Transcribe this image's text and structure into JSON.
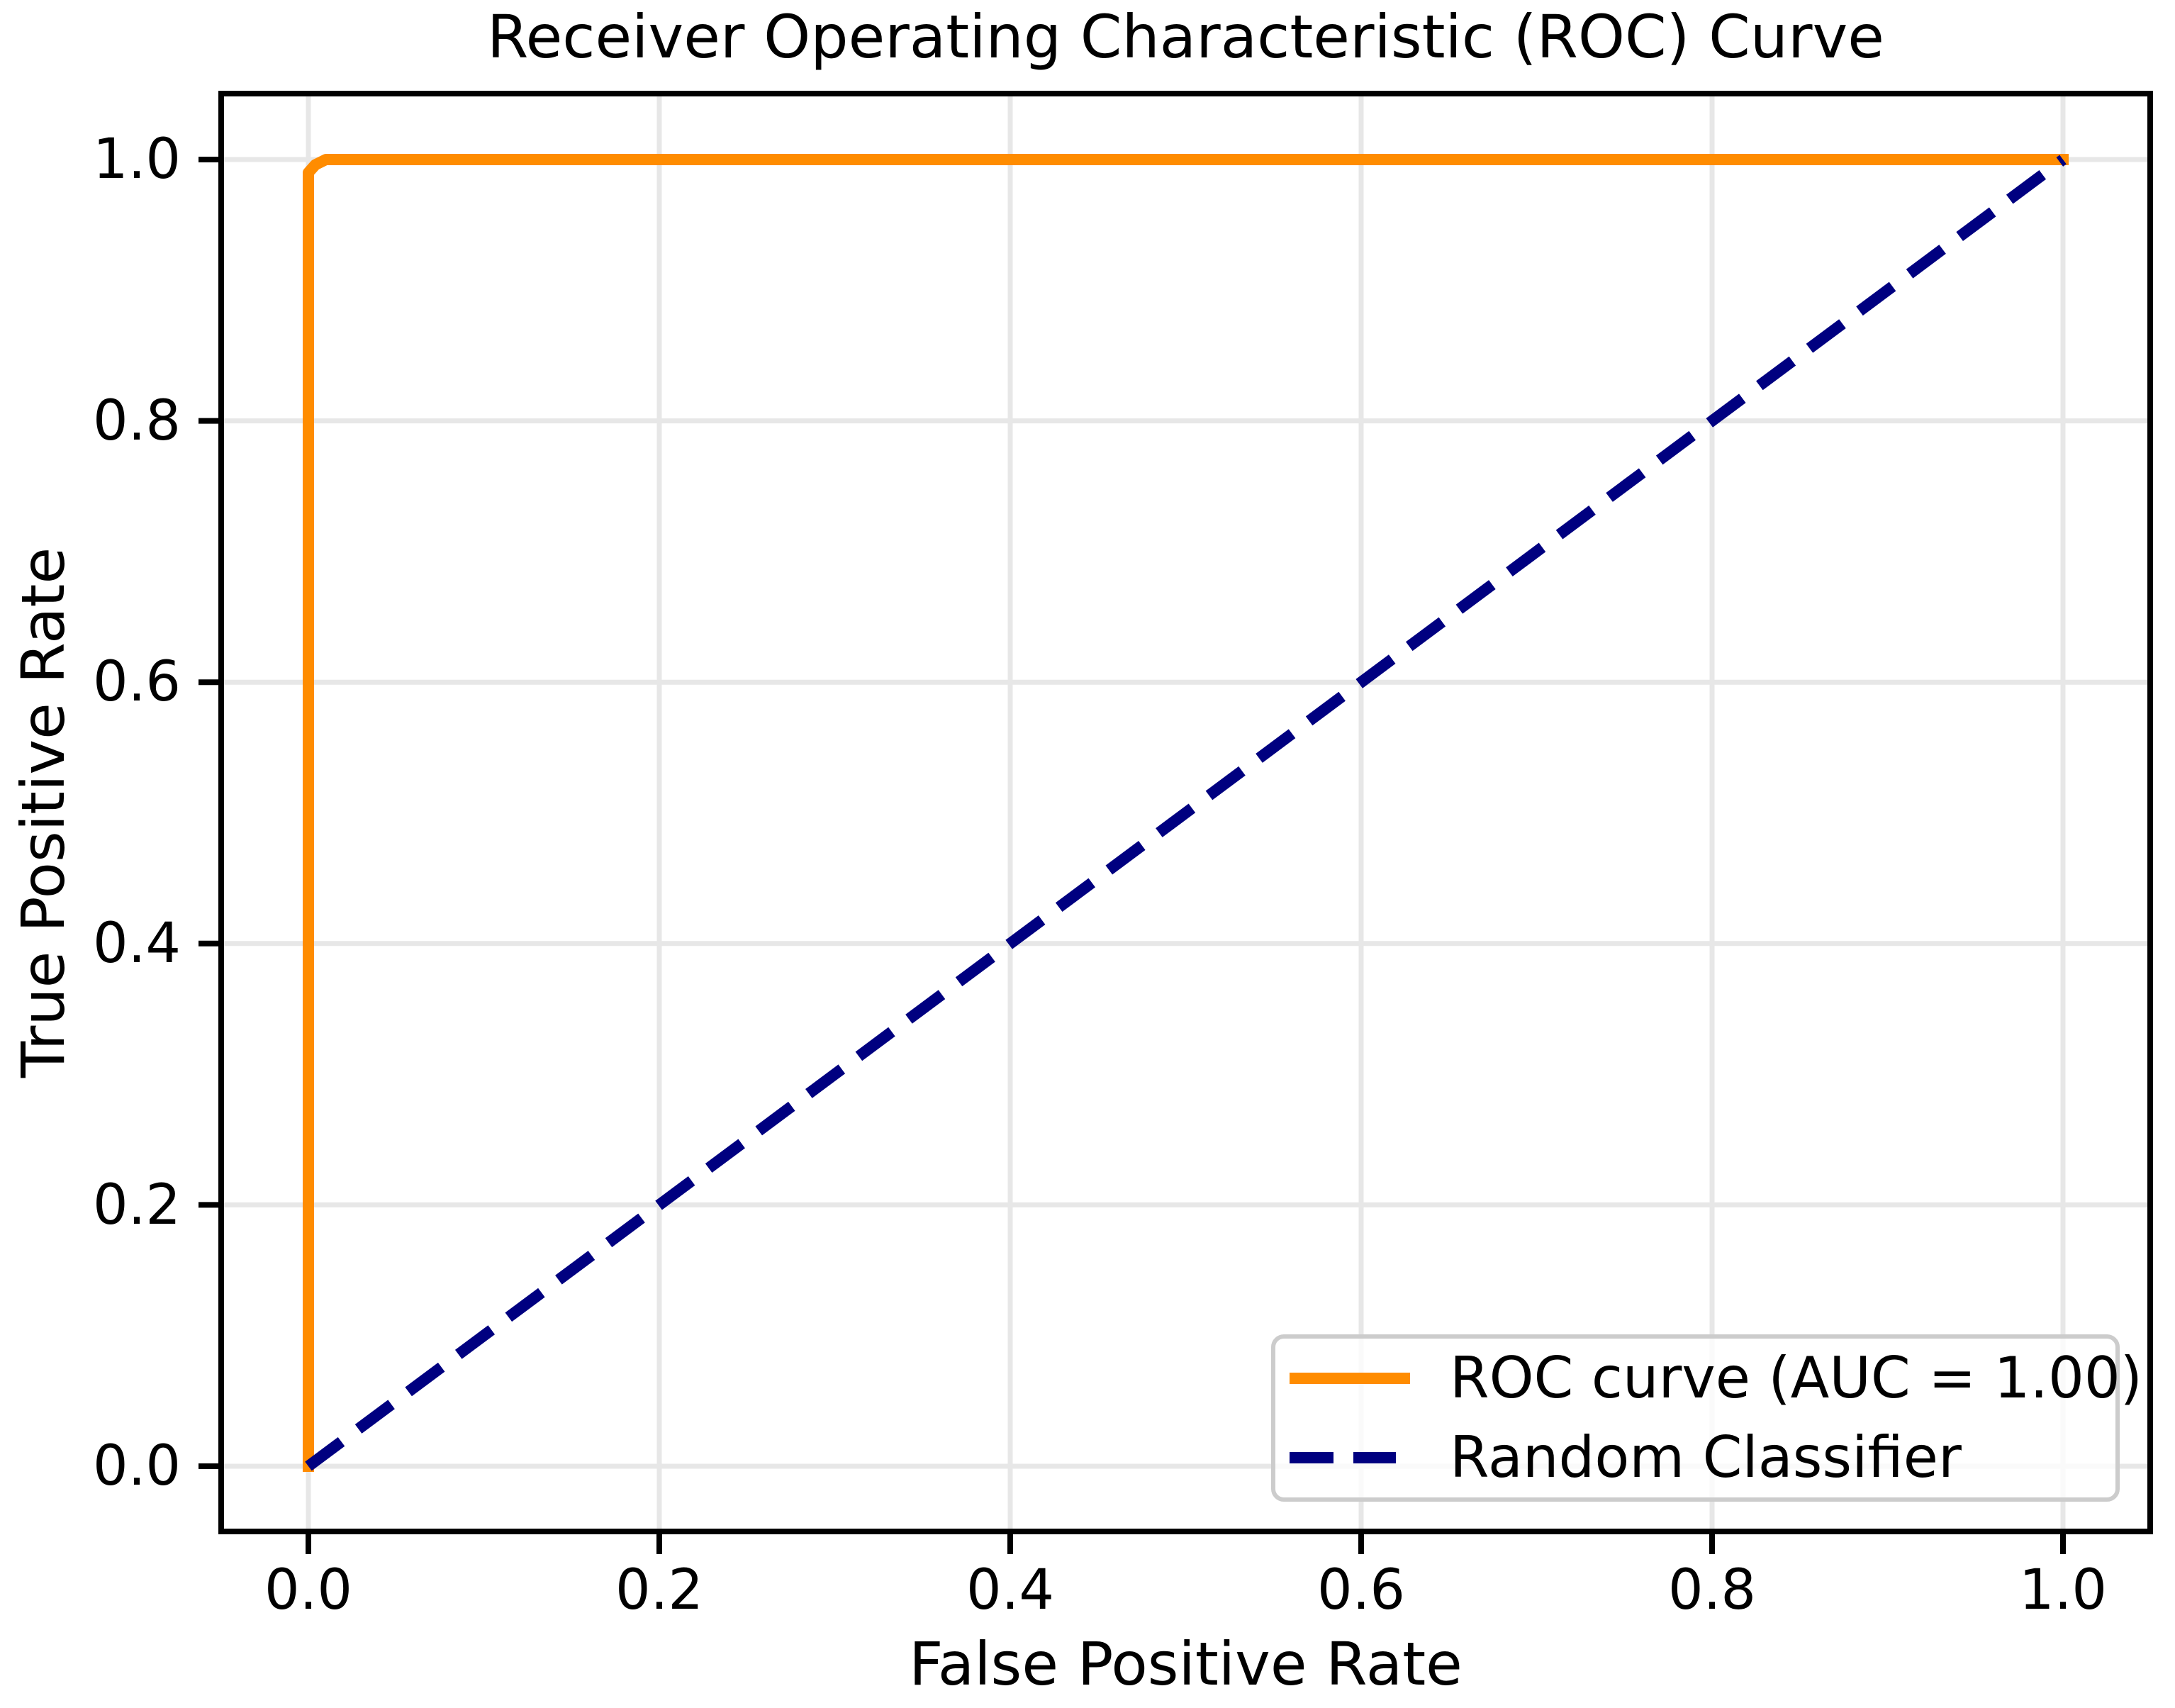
{
  "chart_data": {
    "type": "line",
    "title": "Receiver Operating Characteristic (ROC) Curve",
    "xlabel": "False Positive Rate",
    "ylabel": "True Positive Rate",
    "xlim": [
      -0.05,
      1.05
    ],
    "ylim": [
      -0.05,
      1.05
    ],
    "grid": true,
    "grid_color": "#e7e7e7",
    "spine_color": "#000000",
    "x_ticks": [
      0.0,
      0.2,
      0.4,
      0.6,
      0.8,
      1.0
    ],
    "y_ticks": [
      0.0,
      0.2,
      0.4,
      0.6,
      0.8,
      1.0
    ],
    "x_tick_labels": [
      "0.0",
      "0.2",
      "0.4",
      "0.6",
      "0.8",
      "1.0"
    ],
    "y_tick_labels": [
      "0.0",
      "0.2",
      "0.4",
      "0.6",
      "0.8",
      "1.0"
    ],
    "auc": "1.00",
    "legend_position": "lower right",
    "series": [
      {
        "name": "ROC curve (AUC = 1.00)",
        "color": "#FF8C00",
        "style": "solid",
        "x": [
          0.0,
          0.0,
          0.004,
          0.01,
          1.0
        ],
        "y": [
          0.0,
          0.99,
          0.996,
          1.0,
          1.0
        ]
      },
      {
        "name": "Random Classifier",
        "color": "#000080",
        "style": "dashed",
        "x": [
          0.0,
          1.0
        ],
        "y": [
          0.0,
          1.0
        ]
      }
    ]
  }
}
